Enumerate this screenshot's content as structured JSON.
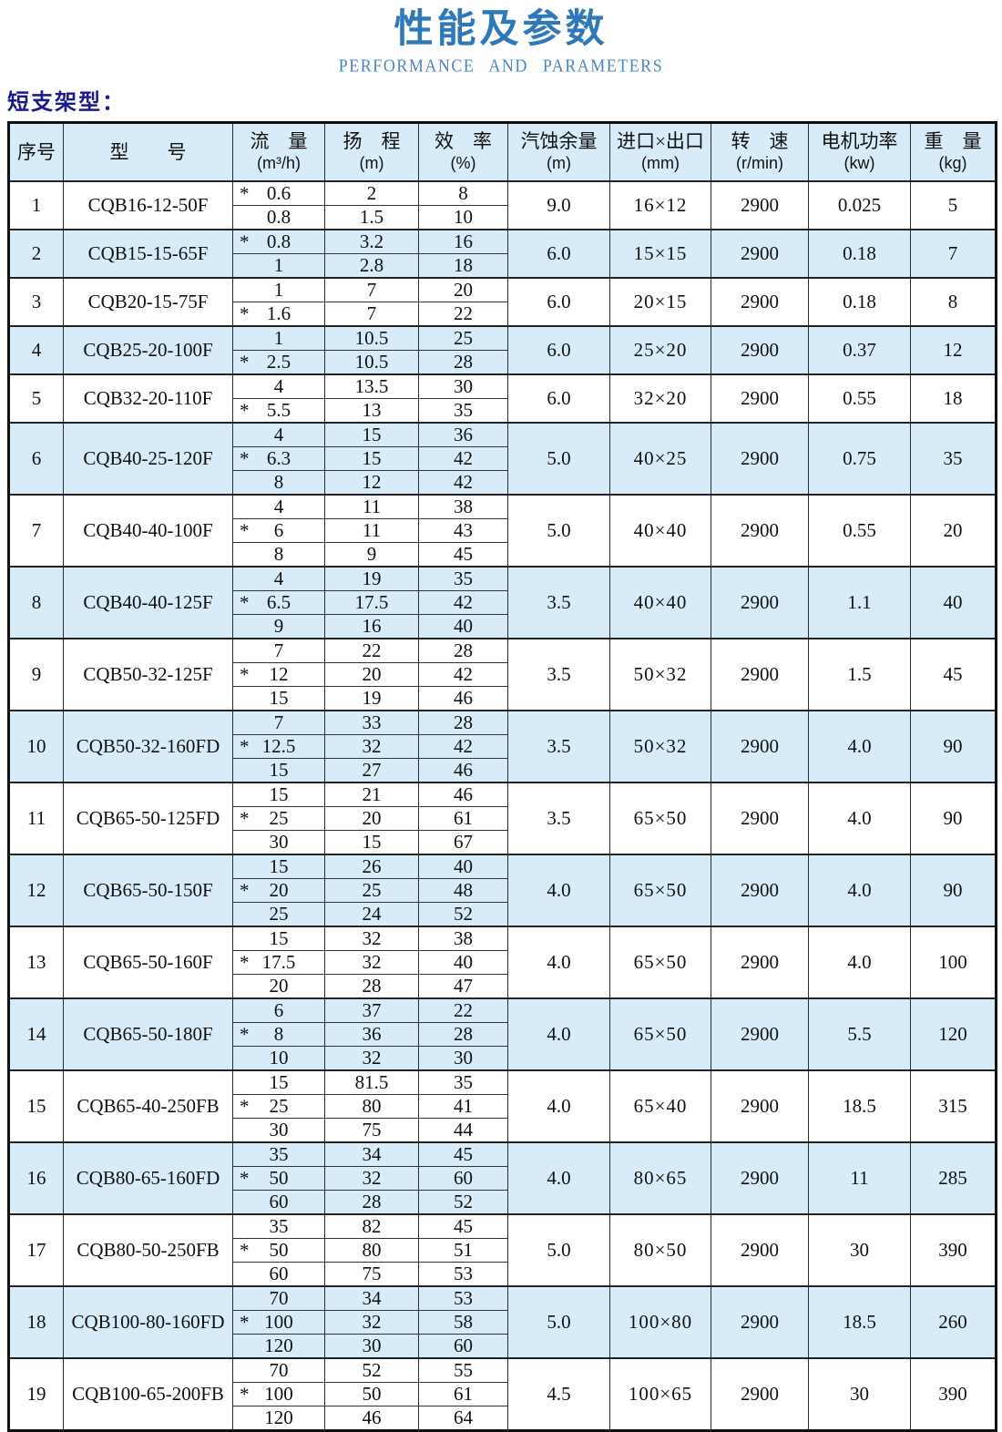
{
  "page": {
    "title": "性能及参数",
    "subtitle": "PERFORMANCE AND PARAMETERS",
    "section_label": "短支架型："
  },
  "colors": {
    "title_blue": "#2d79ba",
    "subtitle_blue": "#4a85bf",
    "section_navy": "#1b1b8c",
    "band_blue": "#d7ecf8",
    "border_dark": "#2b2b2b"
  },
  "table": {
    "star_symbol": "*",
    "headers": {
      "index": "序号",
      "model": "型　　号",
      "flow_label": "流　量",
      "flow_unit": "(m³/h)",
      "head_label": "扬　程",
      "head_unit": "(m)",
      "eff_label": "效　率",
      "eff_unit": "(%)",
      "npsh_label": "汽蚀余量",
      "npsh_unit": "(m)",
      "io_label": "进口×出口",
      "io_unit": "(mm)",
      "speed_label": "转　速",
      "speed_unit": "(r/min)",
      "power_label": "电机功率",
      "power_unit": "(kw)",
      "weight_label": "重　量",
      "weight_unit": "(kg)"
    },
    "rows": [
      {
        "index": "1",
        "model": "CQB16-12-50F",
        "points": [
          {
            "flow": "0.6",
            "head": "2",
            "eff": "8",
            "star": true
          },
          {
            "flow": "0.8",
            "head": "1.5",
            "eff": "10",
            "star": false
          }
        ],
        "npsh": "9.0",
        "inlet_outlet": "16×12",
        "speed": "2900",
        "power": "0.025",
        "weight": "5"
      },
      {
        "index": "2",
        "model": "CQB15-15-65F",
        "points": [
          {
            "flow": "0.8",
            "head": "3.2",
            "eff": "16",
            "star": true
          },
          {
            "flow": "1",
            "head": "2.8",
            "eff": "18",
            "star": false
          }
        ],
        "npsh": "6.0",
        "inlet_outlet": "15×15",
        "speed": "2900",
        "power": "0.18",
        "weight": "7"
      },
      {
        "index": "3",
        "model": "CQB20-15-75F",
        "points": [
          {
            "flow": "1",
            "head": "7",
            "eff": "20",
            "star": false
          },
          {
            "flow": "1.6",
            "head": "7",
            "eff": "22",
            "star": true
          }
        ],
        "npsh": "6.0",
        "inlet_outlet": "20×15",
        "speed": "2900",
        "power": "0.18",
        "weight": "8"
      },
      {
        "index": "4",
        "model": "CQB25-20-100F",
        "points": [
          {
            "flow": "1",
            "head": "10.5",
            "eff": "25",
            "star": false
          },
          {
            "flow": "2.5",
            "head": "10.5",
            "eff": "28",
            "star": true
          }
        ],
        "npsh": "6.0",
        "inlet_outlet": "25×20",
        "speed": "2900",
        "power": "0.37",
        "weight": "12"
      },
      {
        "index": "5",
        "model": "CQB32-20-110F",
        "points": [
          {
            "flow": "4",
            "head": "13.5",
            "eff": "30",
            "star": false
          },
          {
            "flow": "5.5",
            "head": "13",
            "eff": "35",
            "star": true
          }
        ],
        "npsh": "6.0",
        "inlet_outlet": "32×20",
        "speed": "2900",
        "power": "0.55",
        "weight": "18"
      },
      {
        "index": "6",
        "model": "CQB40-25-120F",
        "points": [
          {
            "flow": "4",
            "head": "15",
            "eff": "36",
            "star": false
          },
          {
            "flow": "6.3",
            "head": "15",
            "eff": "42",
            "star": true
          },
          {
            "flow": "8",
            "head": "12",
            "eff": "42",
            "star": false
          }
        ],
        "npsh": "5.0",
        "inlet_outlet": "40×25",
        "speed": "2900",
        "power": "0.75",
        "weight": "35"
      },
      {
        "index": "7",
        "model": "CQB40-40-100F",
        "points": [
          {
            "flow": "4",
            "head": "11",
            "eff": "38",
            "star": false
          },
          {
            "flow": "6",
            "head": "11",
            "eff": "43",
            "star": true
          },
          {
            "flow": "8",
            "head": "9",
            "eff": "45",
            "star": false
          }
        ],
        "npsh": "5.0",
        "inlet_outlet": "40×40",
        "speed": "2900",
        "power": "0.55",
        "weight": "20"
      },
      {
        "index": "8",
        "model": "CQB40-40-125F",
        "points": [
          {
            "flow": "4",
            "head": "19",
            "eff": "35",
            "star": false
          },
          {
            "flow": "6.5",
            "head": "17.5",
            "eff": "42",
            "star": true
          },
          {
            "flow": "9",
            "head": "16",
            "eff": "40",
            "star": false
          }
        ],
        "npsh": "3.5",
        "inlet_outlet": "40×40",
        "speed": "2900",
        "power": "1.1",
        "weight": "40"
      },
      {
        "index": "9",
        "model": "CQB50-32-125F",
        "points": [
          {
            "flow": "7",
            "head": "22",
            "eff": "28",
            "star": false
          },
          {
            "flow": "12",
            "head": "20",
            "eff": "42",
            "star": true
          },
          {
            "flow": "15",
            "head": "19",
            "eff": "46",
            "star": false
          }
        ],
        "npsh": "3.5",
        "inlet_outlet": "50×32",
        "speed": "2900",
        "power": "1.5",
        "weight": "45"
      },
      {
        "index": "10",
        "model": "CQB50-32-160FD",
        "points": [
          {
            "flow": "7",
            "head": "33",
            "eff": "28",
            "star": false
          },
          {
            "flow": "12.5",
            "head": "32",
            "eff": "42",
            "star": true
          },
          {
            "flow": "15",
            "head": "27",
            "eff": "46",
            "star": false
          }
        ],
        "npsh": "3.5",
        "inlet_outlet": "50×32",
        "speed": "2900",
        "power": "4.0",
        "weight": "90"
      },
      {
        "index": "11",
        "model": "CQB65-50-125FD",
        "points": [
          {
            "flow": "15",
            "head": "21",
            "eff": "46",
            "star": false
          },
          {
            "flow": "25",
            "head": "20",
            "eff": "61",
            "star": true
          },
          {
            "flow": "30",
            "head": "15",
            "eff": "67",
            "star": false
          }
        ],
        "npsh": "3.5",
        "inlet_outlet": "65×50",
        "speed": "2900",
        "power": "4.0",
        "weight": "90"
      },
      {
        "index": "12",
        "model": "CQB65-50-150F",
        "points": [
          {
            "flow": "15",
            "head": "26",
            "eff": "40",
            "star": false
          },
          {
            "flow": "20",
            "head": "25",
            "eff": "48",
            "star": true
          },
          {
            "flow": "25",
            "head": "24",
            "eff": "52",
            "star": false
          }
        ],
        "npsh": "4.0",
        "inlet_outlet": "65×50",
        "speed": "2900",
        "power": "4.0",
        "weight": "90"
      },
      {
        "index": "13",
        "model": "CQB65-50-160F",
        "points": [
          {
            "flow": "15",
            "head": "32",
            "eff": "38",
            "star": false
          },
          {
            "flow": "17.5",
            "head": "32",
            "eff": "40",
            "star": true
          },
          {
            "flow": "20",
            "head": "28",
            "eff": "47",
            "star": false
          }
        ],
        "npsh": "4.0",
        "inlet_outlet": "65×50",
        "speed": "2900",
        "power": "4.0",
        "weight": "100"
      },
      {
        "index": "14",
        "model": "CQB65-50-180F",
        "points": [
          {
            "flow": "6",
            "head": "37",
            "eff": "22",
            "star": false
          },
          {
            "flow": "8",
            "head": "36",
            "eff": "28",
            "star": true
          },
          {
            "flow": "10",
            "head": "32",
            "eff": "30",
            "star": false
          }
        ],
        "npsh": "4.0",
        "inlet_outlet": "65×50",
        "speed": "2900",
        "power": "5.5",
        "weight": "120"
      },
      {
        "index": "15",
        "model": "CQB65-40-250FB",
        "points": [
          {
            "flow": "15",
            "head": "81.5",
            "eff": "35",
            "star": false
          },
          {
            "flow": "25",
            "head": "80",
            "eff": "41",
            "star": true
          },
          {
            "flow": "30",
            "head": "75",
            "eff": "44",
            "star": false
          }
        ],
        "npsh": "4.0",
        "inlet_outlet": "65×40",
        "speed": "2900",
        "power": "18.5",
        "weight": "315"
      },
      {
        "index": "16",
        "model": "CQB80-65-160FD",
        "points": [
          {
            "flow": "35",
            "head": "34",
            "eff": "45",
            "star": false
          },
          {
            "flow": "50",
            "head": "32",
            "eff": "60",
            "star": true
          },
          {
            "flow": "60",
            "head": "28",
            "eff": "52",
            "star": false
          }
        ],
        "npsh": "4.0",
        "inlet_outlet": "80×65",
        "speed": "2900",
        "power": "11",
        "weight": "285"
      },
      {
        "index": "17",
        "model": "CQB80-50-250FB",
        "points": [
          {
            "flow": "35",
            "head": "82",
            "eff": "45",
            "star": false
          },
          {
            "flow": "50",
            "head": "80",
            "eff": "51",
            "star": true
          },
          {
            "flow": "60",
            "head": "75",
            "eff": "53",
            "star": false
          }
        ],
        "npsh": "5.0",
        "inlet_outlet": "80×50",
        "speed": "2900",
        "power": "30",
        "weight": "390"
      },
      {
        "index": "18",
        "model": "CQB100-80-160FD",
        "points": [
          {
            "flow": "70",
            "head": "34",
            "eff": "53",
            "star": false
          },
          {
            "flow": "100",
            "head": "32",
            "eff": "58",
            "star": true
          },
          {
            "flow": "120",
            "head": "30",
            "eff": "60",
            "star": false
          }
        ],
        "npsh": "5.0",
        "inlet_outlet": "100×80",
        "speed": "2900",
        "power": "18.5",
        "weight": "260"
      },
      {
        "index": "19",
        "model": "CQB100-65-200FB",
        "points": [
          {
            "flow": "70",
            "head": "52",
            "eff": "55",
            "star": false
          },
          {
            "flow": "100",
            "head": "50",
            "eff": "61",
            "star": true
          },
          {
            "flow": "120",
            "head": "46",
            "eff": "64",
            "star": false
          }
        ],
        "npsh": "4.5",
        "inlet_outlet": "100×65",
        "speed": "2900",
        "power": "30",
        "weight": "390"
      }
    ]
  }
}
